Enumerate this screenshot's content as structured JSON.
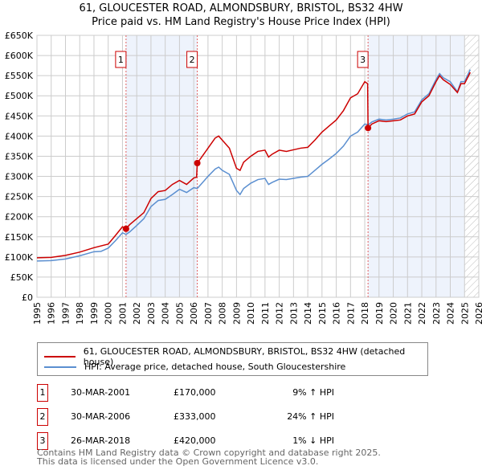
{
  "chart_data": {
    "type": "line",
    "title": "61, GLOUCESTER ROAD, ALMONDSBURY, BRISTOL, BS32 4HW",
    "subtitle": "Price paid vs. HM Land Registry's House Price Index (HPI)",
    "xlim": [
      1995,
      2026
    ],
    "ylim": [
      0,
      650000
    ],
    "x_ticks": [
      "1995",
      "1996",
      "1997",
      "1998",
      "1999",
      "2000",
      "2001",
      "2002",
      "2003",
      "2004",
      "2005",
      "2006",
      "2007",
      "2008",
      "2009",
      "2010",
      "2011",
      "2012",
      "2013",
      "2014",
      "2015",
      "2016",
      "2017",
      "2018",
      "2019",
      "2020",
      "2021",
      "2022",
      "2023",
      "2024",
      "2025",
      "2026"
    ],
    "y_ticks": [
      {
        "v": 0,
        "l": "£0"
      },
      {
        "v": 50000,
        "l": "£50K"
      },
      {
        "v": 100000,
        "l": "£100K"
      },
      {
        "v": 150000,
        "l": "£150K"
      },
      {
        "v": 200000,
        "l": "£200K"
      },
      {
        "v": 250000,
        "l": "£250K"
      },
      {
        "v": 300000,
        "l": "£300K"
      },
      {
        "v": 350000,
        "l": "£350K"
      },
      {
        "v": 400000,
        "l": "£400K"
      },
      {
        "v": 450000,
        "l": "£450K"
      },
      {
        "v": 500000,
        "l": "£500K"
      },
      {
        "v": 550000,
        "l": "£550K"
      },
      {
        "v": 600000,
        "l": "£600K"
      },
      {
        "v": 650000,
        "l": "£650K"
      }
    ],
    "grid": true,
    "shaded_ranges": [
      [
        2001.25,
        2006.25
      ],
      [
        2018.23,
        2025.0
      ]
    ],
    "forecast_hatch_from": 2025.0,
    "series": [
      {
        "name": "61, GLOUCESTER ROAD, ALMONDSBURY, BRISTOL, BS32 4HW (detached house)",
        "color": "#cc0000",
        "x": [
          1995,
          1996,
          1997,
          1998,
          1999,
          2000,
          2000.5,
          2001,
          2001.25,
          2001.5,
          2002,
          2002.5,
          2003,
          2003.5,
          2004,
          2004.5,
          2005,
          2005.5,
          2006,
          2006.2,
          2006.25,
          2006.5,
          2007,
          2007.5,
          2007.75,
          2008,
          2008.5,
          2009,
          2009.25,
          2009.5,
          2010,
          2010.5,
          2011,
          2011.25,
          2011.5,
          2012,
          2012.5,
          2013,
          2013.5,
          2014,
          2014.5,
          2015,
          2015.5,
          2016,
          2016.5,
          2017,
          2017.5,
          2018,
          2018.2,
          2018.23,
          2018.5,
          2019,
          2019.5,
          2020,
          2020.5,
          2021,
          2021.5,
          2022,
          2022.5,
          2023,
          2023.25,
          2023.5,
          2024,
          2024.5,
          2024.75,
          2025,
          2025.4
        ],
        "y": [
          98,
          99,
          104,
          112,
          123,
          132,
          153,
          175,
          170,
          180,
          195,
          210,
          245,
          262,
          265,
          280,
          290,
          280,
          296,
          298,
          333,
          345,
          370,
          395,
          400,
          390,
          370,
          320,
          315,
          335,
          350,
          362,
          365,
          348,
          355,
          365,
          362,
          366,
          370,
          372,
          390,
          410,
          425,
          440,
          463,
          495,
          505,
          535,
          530,
          420,
          430,
          438,
          436,
          438,
          440,
          450,
          455,
          485,
          500,
          535,
          550,
          540,
          528,
          508,
          530,
          530,
          558
        ]
      },
      {
        "name": "HPI: Average price, detached house, South Gloucestershire",
        "color": "#5b8fd0",
        "x": [
          1995,
          1996,
          1997,
          1998,
          1999,
          1999.5,
          2000,
          2000.5,
          2001,
          2001.25,
          2001.5,
          2002,
          2002.5,
          2003,
          2003.5,
          2004,
          2004.5,
          2005,
          2005.5,
          2006,
          2006.25,
          2006.5,
          2007,
          2007.5,
          2007.75,
          2008,
          2008.5,
          2009,
          2009.25,
          2009.5,
          2010,
          2010.5,
          2011,
          2011.25,
          2011.5,
          2012,
          2012.5,
          2013,
          2013.5,
          2014,
          2014.5,
          2015,
          2015.5,
          2016,
          2016.5,
          2017,
          2017.5,
          2018,
          2018.25,
          2018.5,
          2019,
          2019.5,
          2020,
          2020.5,
          2021,
          2021.5,
          2022,
          2022.5,
          2023,
          2023.25,
          2023.5,
          2024,
          2024.5,
          2024.75,
          2025,
          2025.4
        ],
        "y": [
          90,
          91,
          95,
          103,
          113,
          114,
          122,
          140,
          160,
          156,
          162,
          178,
          195,
          225,
          240,
          243,
          255,
          268,
          260,
          272,
          270,
          280,
          300,
          318,
          323,
          315,
          305,
          265,
          255,
          270,
          283,
          292,
          295,
          280,
          285,
          293,
          292,
          295,
          298,
          300,
          315,
          330,
          343,
          357,
          375,
          400,
          410,
          430,
          428,
          435,
          442,
          440,
          442,
          445,
          455,
          460,
          490,
          505,
          540,
          555,
          545,
          535,
          510,
          535,
          535,
          565
        ]
      }
    ],
    "y_units": "thousands GBP",
    "sales": [
      {
        "n": "1",
        "x": 2001.25,
        "y": 170,
        "date": "30-MAR-2001",
        "price": "£170,000",
        "hpi": "9% ↑ HPI"
      },
      {
        "n": "2",
        "x": 2006.25,
        "y": 333,
        "date": "30-MAR-2006",
        "price": "£333,000",
        "hpi": "24% ↑ HPI"
      },
      {
        "n": "3",
        "x": 2018.23,
        "y": 420,
        "date": "26-MAR-2018",
        "price": "£420,000",
        "hpi": "1% ↓ HPI"
      }
    ]
  },
  "footer": {
    "line1": "Contains HM Land Registry data © Crown copyright and database right 2025.",
    "line2": "This data is licensed under the Open Government Licence v3.0."
  }
}
